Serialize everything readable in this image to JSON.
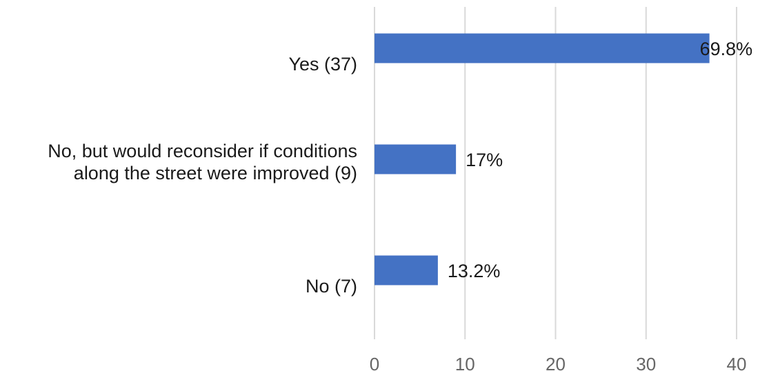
{
  "chart_data": {
    "type": "bar",
    "orientation": "horizontal",
    "categories": [
      [
        "Yes (37)"
      ],
      [
        "No, but would reconsider if conditions",
        "along the street were improved (9)"
      ],
      [
        "No (7)"
      ]
    ],
    "values": [
      37,
      9,
      7
    ],
    "data_labels": [
      "69.8%",
      "17%",
      "13.2%"
    ],
    "x_ticks": [
      "0",
      "10",
      "20",
      "30",
      "40"
    ],
    "xlim": [
      0,
      40
    ],
    "grid": "vertical",
    "legend": "none",
    "bar_color": "#4472C4",
    "grid_color": "#d9d9d9"
  }
}
